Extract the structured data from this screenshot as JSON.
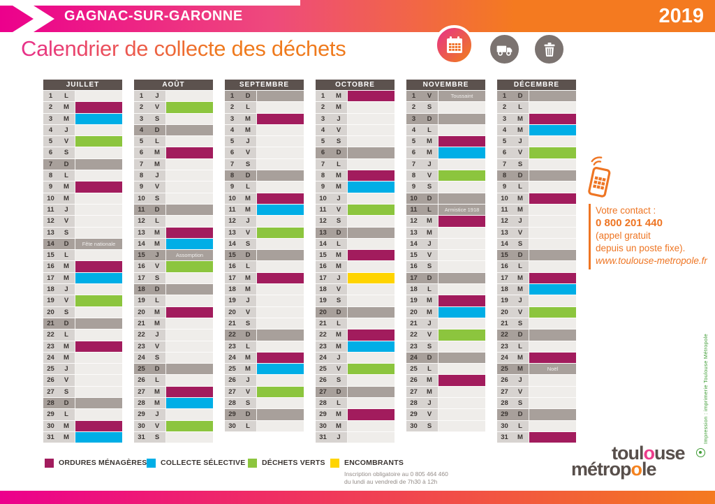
{
  "header": {
    "commune": "GAGNAC-SUR-GARONNE",
    "year": "2019",
    "title": "Calendrier de collecte des déchets"
  },
  "icons": [
    "calendar-icon",
    "truck-icon",
    "trash-icon",
    "phone-icon",
    "eco-print-icon"
  ],
  "colors": {
    "ordures": "#a21c5d",
    "selective": "#00aee6",
    "verts": "#8cc53e",
    "encombrants": "#ffd400",
    "sunday": "#a8a09b",
    "banner_pink": "#ec008c",
    "banner_orange": "#f47a20"
  },
  "day_type_codes": {
    "om": "ordures ménagères",
    "cs": "collecte sélective",
    "dv": "déchets verts",
    "en": "encombrants",
    "gray": "dimanche / jour férié"
  },
  "months": [
    {
      "name": "JUILLET",
      "days": [
        [
          1,
          "L",
          ""
        ],
        [
          2,
          "M",
          "om"
        ],
        [
          3,
          "M",
          "cs"
        ],
        [
          4,
          "J",
          ""
        ],
        [
          5,
          "V",
          "dv"
        ],
        [
          6,
          "S",
          ""
        ],
        [
          7,
          "D",
          "gray"
        ],
        [
          8,
          "L",
          ""
        ],
        [
          9,
          "M",
          "om"
        ],
        [
          10,
          "M",
          ""
        ],
        [
          11,
          "J",
          ""
        ],
        [
          12,
          "V",
          ""
        ],
        [
          13,
          "S",
          ""
        ],
        [
          14,
          "D",
          "gray",
          "Fête nationale"
        ],
        [
          15,
          "L",
          ""
        ],
        [
          16,
          "M",
          "om"
        ],
        [
          17,
          "M",
          "cs"
        ],
        [
          18,
          "J",
          ""
        ],
        [
          19,
          "V",
          "dv"
        ],
        [
          20,
          "S",
          ""
        ],
        [
          21,
          "D",
          "gray"
        ],
        [
          22,
          "L",
          ""
        ],
        [
          23,
          "M",
          "om"
        ],
        [
          24,
          "M",
          ""
        ],
        [
          25,
          "J",
          ""
        ],
        [
          26,
          "V",
          ""
        ],
        [
          27,
          "S",
          ""
        ],
        [
          28,
          "D",
          "gray"
        ],
        [
          29,
          "L",
          ""
        ],
        [
          30,
          "M",
          "om"
        ],
        [
          31,
          "M",
          "cs"
        ]
      ]
    },
    {
      "name": "AOÛT",
      "days": [
        [
          1,
          "J",
          ""
        ],
        [
          2,
          "V",
          "dv"
        ],
        [
          3,
          "S",
          ""
        ],
        [
          4,
          "D",
          "gray"
        ],
        [
          5,
          "L",
          ""
        ],
        [
          6,
          "M",
          "om"
        ],
        [
          7,
          "M",
          ""
        ],
        [
          8,
          "J",
          ""
        ],
        [
          9,
          "V",
          ""
        ],
        [
          10,
          "S",
          ""
        ],
        [
          11,
          "D",
          "gray"
        ],
        [
          12,
          "L",
          ""
        ],
        [
          13,
          "M",
          "om"
        ],
        [
          14,
          "M",
          "cs"
        ],
        [
          15,
          "J",
          "gray",
          "Assomption"
        ],
        [
          16,
          "V",
          "dv"
        ],
        [
          17,
          "S",
          ""
        ],
        [
          18,
          "D",
          "gray"
        ],
        [
          19,
          "L",
          ""
        ],
        [
          20,
          "M",
          "om"
        ],
        [
          21,
          "M",
          ""
        ],
        [
          22,
          "J",
          ""
        ],
        [
          23,
          "V",
          ""
        ],
        [
          24,
          "S",
          ""
        ],
        [
          25,
          "D",
          "gray"
        ],
        [
          26,
          "L",
          ""
        ],
        [
          27,
          "M",
          "om"
        ],
        [
          28,
          "M",
          "cs"
        ],
        [
          29,
          "J",
          ""
        ],
        [
          30,
          "V",
          "dv"
        ],
        [
          31,
          "S",
          ""
        ]
      ]
    },
    {
      "name": "SEPTEMBRE",
      "days": [
        [
          1,
          "D",
          "gray"
        ],
        [
          2,
          "L",
          ""
        ],
        [
          3,
          "M",
          "om"
        ],
        [
          4,
          "M",
          ""
        ],
        [
          5,
          "J",
          ""
        ],
        [
          6,
          "V",
          ""
        ],
        [
          7,
          "S",
          ""
        ],
        [
          8,
          "D",
          "gray"
        ],
        [
          9,
          "L",
          ""
        ],
        [
          10,
          "M",
          "om"
        ],
        [
          11,
          "M",
          "cs"
        ],
        [
          12,
          "J",
          ""
        ],
        [
          13,
          "V",
          "dv"
        ],
        [
          14,
          "S",
          ""
        ],
        [
          15,
          "D",
          "gray"
        ],
        [
          16,
          "L",
          ""
        ],
        [
          17,
          "M",
          "om"
        ],
        [
          18,
          "M",
          ""
        ],
        [
          19,
          "J",
          ""
        ],
        [
          20,
          "V",
          ""
        ],
        [
          21,
          "S",
          ""
        ],
        [
          22,
          "D",
          "gray"
        ],
        [
          23,
          "L",
          ""
        ],
        [
          24,
          "M",
          "om"
        ],
        [
          25,
          "M",
          "cs"
        ],
        [
          26,
          "J",
          ""
        ],
        [
          27,
          "V",
          "dv"
        ],
        [
          28,
          "S",
          ""
        ],
        [
          29,
          "D",
          "gray"
        ],
        [
          30,
          "L",
          ""
        ]
      ]
    },
    {
      "name": "OCTOBRE",
      "days": [
        [
          1,
          "M",
          "om"
        ],
        [
          2,
          "M",
          ""
        ],
        [
          3,
          "J",
          ""
        ],
        [
          4,
          "V",
          ""
        ],
        [
          5,
          "S",
          ""
        ],
        [
          6,
          "D",
          "gray"
        ],
        [
          7,
          "L",
          ""
        ],
        [
          8,
          "M",
          "om"
        ],
        [
          9,
          "M",
          "cs"
        ],
        [
          10,
          "J",
          ""
        ],
        [
          11,
          "V",
          "dv"
        ],
        [
          12,
          "S",
          ""
        ],
        [
          13,
          "D",
          "gray"
        ],
        [
          14,
          "L",
          ""
        ],
        [
          15,
          "M",
          "om"
        ],
        [
          16,
          "M",
          ""
        ],
        [
          17,
          "J",
          "en"
        ],
        [
          18,
          "V",
          ""
        ],
        [
          19,
          "S",
          ""
        ],
        [
          20,
          "D",
          "gray"
        ],
        [
          21,
          "L",
          ""
        ],
        [
          22,
          "M",
          "om"
        ],
        [
          23,
          "M",
          "cs"
        ],
        [
          24,
          "J",
          ""
        ],
        [
          25,
          "V",
          "dv"
        ],
        [
          26,
          "S",
          ""
        ],
        [
          27,
          "D",
          "gray"
        ],
        [
          28,
          "L",
          ""
        ],
        [
          29,
          "M",
          "om"
        ],
        [
          30,
          "M",
          ""
        ],
        [
          31,
          "J",
          ""
        ]
      ]
    },
    {
      "name": "NOVEMBRE",
      "days": [
        [
          1,
          "V",
          "gray",
          "Toussaint"
        ],
        [
          2,
          "S",
          ""
        ],
        [
          3,
          "D",
          "gray"
        ],
        [
          4,
          "L",
          ""
        ],
        [
          5,
          "M",
          "om"
        ],
        [
          6,
          "M",
          "cs"
        ],
        [
          7,
          "J",
          ""
        ],
        [
          8,
          "V",
          "dv"
        ],
        [
          9,
          "S",
          ""
        ],
        [
          10,
          "D",
          "gray"
        ],
        [
          11,
          "L",
          "gray",
          "Armistice 1918"
        ],
        [
          12,
          "M",
          "om"
        ],
        [
          13,
          "M",
          ""
        ],
        [
          14,
          "J",
          ""
        ],
        [
          15,
          "V",
          ""
        ],
        [
          16,
          "S",
          ""
        ],
        [
          17,
          "D",
          "gray"
        ],
        [
          18,
          "L",
          ""
        ],
        [
          19,
          "M",
          "om"
        ],
        [
          20,
          "M",
          "cs"
        ],
        [
          21,
          "J",
          ""
        ],
        [
          22,
          "V",
          "dv"
        ],
        [
          23,
          "S",
          ""
        ],
        [
          24,
          "D",
          "gray"
        ],
        [
          25,
          "L",
          ""
        ],
        [
          26,
          "M",
          "om"
        ],
        [
          27,
          "M",
          ""
        ],
        [
          28,
          "J",
          ""
        ],
        [
          29,
          "V",
          ""
        ],
        [
          30,
          "S",
          ""
        ]
      ]
    },
    {
      "name": "DÉCEMBRE",
      "days": [
        [
          1,
          "D",
          "gray"
        ],
        [
          2,
          "L",
          ""
        ],
        [
          3,
          "M",
          "om"
        ],
        [
          4,
          "M",
          "cs"
        ],
        [
          5,
          "J",
          ""
        ],
        [
          6,
          "V",
          "dv"
        ],
        [
          7,
          "S",
          ""
        ],
        [
          8,
          "D",
          "gray"
        ],
        [
          9,
          "L",
          ""
        ],
        [
          10,
          "M",
          "om"
        ],
        [
          11,
          "M",
          ""
        ],
        [
          12,
          "J",
          ""
        ],
        [
          13,
          "V",
          ""
        ],
        [
          14,
          "S",
          ""
        ],
        [
          15,
          "D",
          "gray"
        ],
        [
          16,
          "L",
          ""
        ],
        [
          17,
          "M",
          "om"
        ],
        [
          18,
          "M",
          "cs"
        ],
        [
          19,
          "J",
          ""
        ],
        [
          20,
          "V",
          "dv"
        ],
        [
          21,
          "S",
          ""
        ],
        [
          22,
          "D",
          "gray"
        ],
        [
          23,
          "L",
          ""
        ],
        [
          24,
          "M",
          "om"
        ],
        [
          25,
          "M",
          "gray",
          "Noël"
        ],
        [
          26,
          "J",
          ""
        ],
        [
          27,
          "V",
          ""
        ],
        [
          28,
          "S",
          ""
        ],
        [
          29,
          "D",
          "gray"
        ],
        [
          30,
          "L",
          ""
        ],
        [
          31,
          "M",
          "om"
        ]
      ]
    }
  ],
  "legend": [
    {
      "color_key": "ordures",
      "label": "ORDURES MÉNAGÈRES"
    },
    {
      "color_key": "selective",
      "label": "COLLECTE SÉLECTIVE"
    },
    {
      "color_key": "verts",
      "label": "DÉCHETS VERTS"
    },
    {
      "color_key": "encombrants",
      "label": "ENCOMBRANTS",
      "note_line1": "Inscription obligatoire au 0 805 464 460",
      "note_line2": "du lundi au vendredi de 7h30 à 12h"
    }
  ],
  "contact": {
    "intro": "Votre contact :",
    "phone": "0 800 201 440",
    "note1": "(appel gratuit",
    "note2": "depuis un poste fixe).",
    "website": "www.toulouse-metropole.fr"
  },
  "footer": {
    "logo": {
      "line1_pre": "toul",
      "line1_o": "o",
      "line1_post": "use",
      "line2_pre": "métrop",
      "line2_o": "o",
      "line2_post": "le"
    },
    "print_credit": "Impression : imprimerie Toulouse Métropole"
  }
}
